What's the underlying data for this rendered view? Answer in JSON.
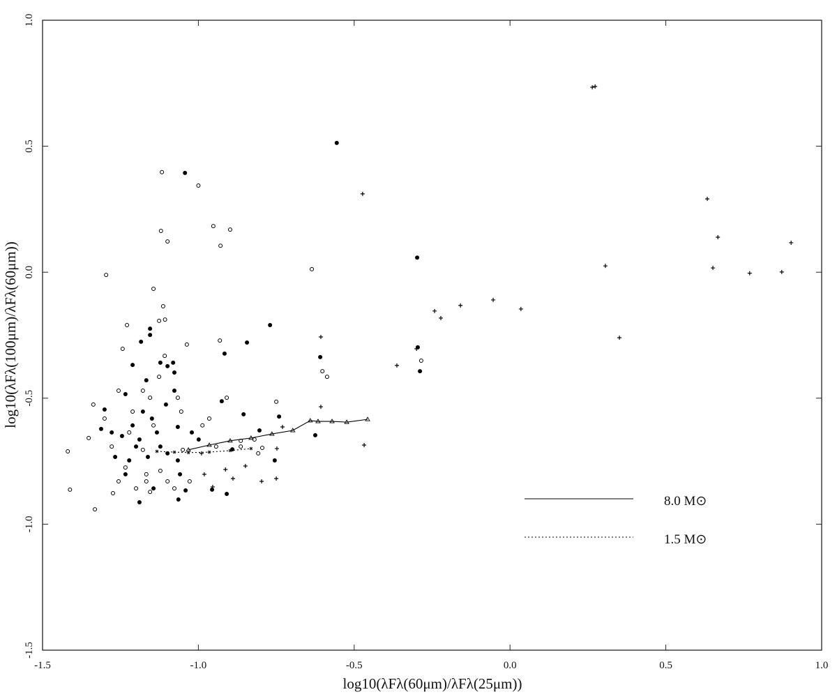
{
  "chart_data": {
    "type": "scatter",
    "x_label": "log10(λFλ(60μm)/λFλ(25μm))",
    "y_label": "log10(λFλ(100μm)/λFλ(60μm))",
    "xlim": [
      -1.5,
      1.0
    ],
    "ylim": [
      -1.5,
      1.0
    ],
    "xticks": [
      -1.5,
      {
        "value": -1,
        "label": "-1.0"
      },
      -0.5,
      {
        "value": 0,
        "label": "0.0"
      },
      0.5,
      {
        "value": 1,
        "label": "1.0"
      }
    ],
    "yticks": [
      -1.5,
      {
        "value": -1,
        "label": "-1.0"
      },
      -0.5,
      {
        "value": 0,
        "label": "0.0"
      },
      0.5,
      {
        "value": 1,
        "label": "1.0"
      }
    ],
    "legend": "lower right",
    "series": [
      {
        "marker": "filled-circle",
        "color": "#000000",
        "x": [
          -0.556,
          -0.298,
          -1.043,
          -0.77,
          -0.844,
          -0.296,
          -0.289,
          -0.609,
          -0.855,
          -0.916,
          -0.925,
          -0.741,
          -0.804,
          -0.625,
          -0.755,
          -0.891,
          -0.909,
          -0.956,
          -1.064,
          -1.041,
          -1.155,
          -1.184,
          -1.211,
          -1.122,
          -1.081,
          -1.077,
          -1.167,
          -1.234,
          -1.077,
          -1.104,
          -1.178,
          -1.149,
          -1.211,
          -1.245,
          -1.278,
          -1.312,
          -1.189,
          -1.122,
          -1.162,
          -1.222,
          -1.267,
          -1.099,
          -1.059,
          -1.144,
          -1.189,
          -1.021,
          -1.301,
          -1.066,
          -1.133,
          -1.2,
          -1.234,
          -1.066,
          -0.999,
          -1.099,
          -1.155
        ],
        "y": [
          0.513,
          0.058,
          0.394,
          -0.21,
          -0.279,
          -0.298,
          -0.393,
          -0.337,
          -0.564,
          -0.323,
          -0.512,
          -0.573,
          -0.628,
          -0.647,
          -0.747,
          -0.703,
          -0.88,
          -0.863,
          -0.902,
          -0.866,
          -0.224,
          -0.276,
          -0.368,
          -0.359,
          -0.359,
          -0.398,
          -0.429,
          -0.484,
          -0.47,
          -0.525,
          -0.553,
          -0.581,
          -0.608,
          -0.65,
          -0.636,
          -0.622,
          -0.664,
          -0.692,
          -0.733,
          -0.747,
          -0.733,
          -0.719,
          -0.802,
          -0.858,
          -0.913,
          -0.636,
          -0.545,
          -0.614,
          -0.636,
          -0.692,
          -0.802,
          -0.747,
          -0.664,
          -0.373,
          -0.249
        ]
      },
      {
        "marker": "open-circle",
        "color": "#000000",
        "x": [
          -1.117,
          -1.0,
          -0.952,
          -0.898,
          -1.12,
          -1.099,
          -0.929,
          -1.296,
          -0.636,
          -1.144,
          -1.113,
          -1.107,
          -1.229,
          -1.243,
          -1.037,
          -0.931,
          -0.285,
          -0.587,
          -0.602,
          -0.909,
          -0.75,
          -1.419,
          -1.412,
          -1.332,
          -1.274,
          -1.337,
          -1.352,
          -1.301,
          -1.278,
          -1.256,
          -1.234,
          -1.2,
          -1.178,
          -1.155,
          -1.126,
          -1.108,
          -1.167,
          -1.099,
          -1.077,
          -1.05,
          -1.028,
          -0.987,
          -0.965,
          -0.943,
          -0.864,
          -0.864,
          -0.82,
          -0.808,
          -0.795,
          -1.178,
          -1.211,
          -1.222,
          -1.144,
          -1.126,
          -1.066,
          -1.055,
          -1.155,
          -1.167,
          -1.122,
          -1.256
        ],
        "y": [
          0.397,
          0.344,
          0.183,
          0.169,
          0.164,
          0.122,
          0.105,
          -0.011,
          0.012,
          -0.066,
          -0.135,
          -0.188,
          -0.21,
          -0.304,
          -0.287,
          -0.271,
          -0.351,
          -0.415,
          -0.393,
          -0.498,
          -0.514,
          -0.711,
          -0.863,
          -0.941,
          -0.877,
          -0.525,
          -0.658,
          -0.581,
          -0.692,
          -0.83,
          -0.775,
          -0.858,
          -0.47,
          -0.498,
          -0.415,
          -0.332,
          -0.802,
          -0.83,
          -0.858,
          -0.705,
          -0.83,
          -0.608,
          -0.581,
          -0.692,
          -0.669,
          -0.692,
          -0.664,
          -0.719,
          -0.697,
          -0.705,
          -0.553,
          -0.636,
          -0.608,
          -0.193,
          -0.498,
          -0.553,
          -0.872,
          -0.83,
          -0.788,
          -0.47
        ]
      },
      {
        "marker": "plus",
        "color": "#000000",
        "x": [
          -0.473,
          0.633,
          0.667,
          0.902,
          0.306,
          0.651,
          0.769,
          0.872,
          -0.242,
          -0.222,
          -0.159,
          -0.054,
          0.035,
          0.351,
          -0.363,
          -0.3,
          -0.607,
          -0.607,
          -0.468,
          -0.73,
          -0.748,
          -0.75,
          -0.797,
          -0.849,
          -0.889,
          -0.913,
          -0.954,
          -0.981,
          -0.99,
          0.264,
          0.273
        ],
        "y": [
          0.311,
          0.291,
          0.139,
          0.117,
          0.025,
          0.017,
          -0.004,
          0.001,
          -0.154,
          -0.182,
          -0.132,
          -0.11,
          -0.146,
          -0.26,
          -0.37,
          -0.304,
          -0.257,
          -0.534,
          -0.686,
          -0.614,
          -0.7,
          -0.819,
          -0.83,
          -0.769,
          -0.819,
          -0.783,
          -0.852,
          -0.802,
          -0.719,
          0.734,
          0.737
        ]
      },
      {
        "name": "8.0 M⊙",
        "marker": "triangle",
        "line": "solid",
        "color": "#000000",
        "x": [
          -1.032,
          -0.965,
          -0.898,
          -0.831,
          -0.764,
          -0.697,
          -0.641,
          -0.616,
          -0.571,
          -0.524,
          -0.457
        ],
        "y": [
          -0.705,
          -0.686,
          -0.669,
          -0.658,
          -0.642,
          -0.628,
          -0.589,
          -0.592,
          -0.592,
          -0.595,
          -0.584
        ]
      },
      {
        "name": "1.5 M⊙",
        "marker": "star",
        "line": "dotted",
        "color": "#000000",
        "x": [
          -1.133,
          -1.077,
          -1.032,
          -0.965,
          -0.898,
          -0.831
        ],
        "y": [
          -0.711,
          -0.714,
          -0.716,
          -0.714,
          -0.708,
          -0.7
        ]
      }
    ]
  }
}
